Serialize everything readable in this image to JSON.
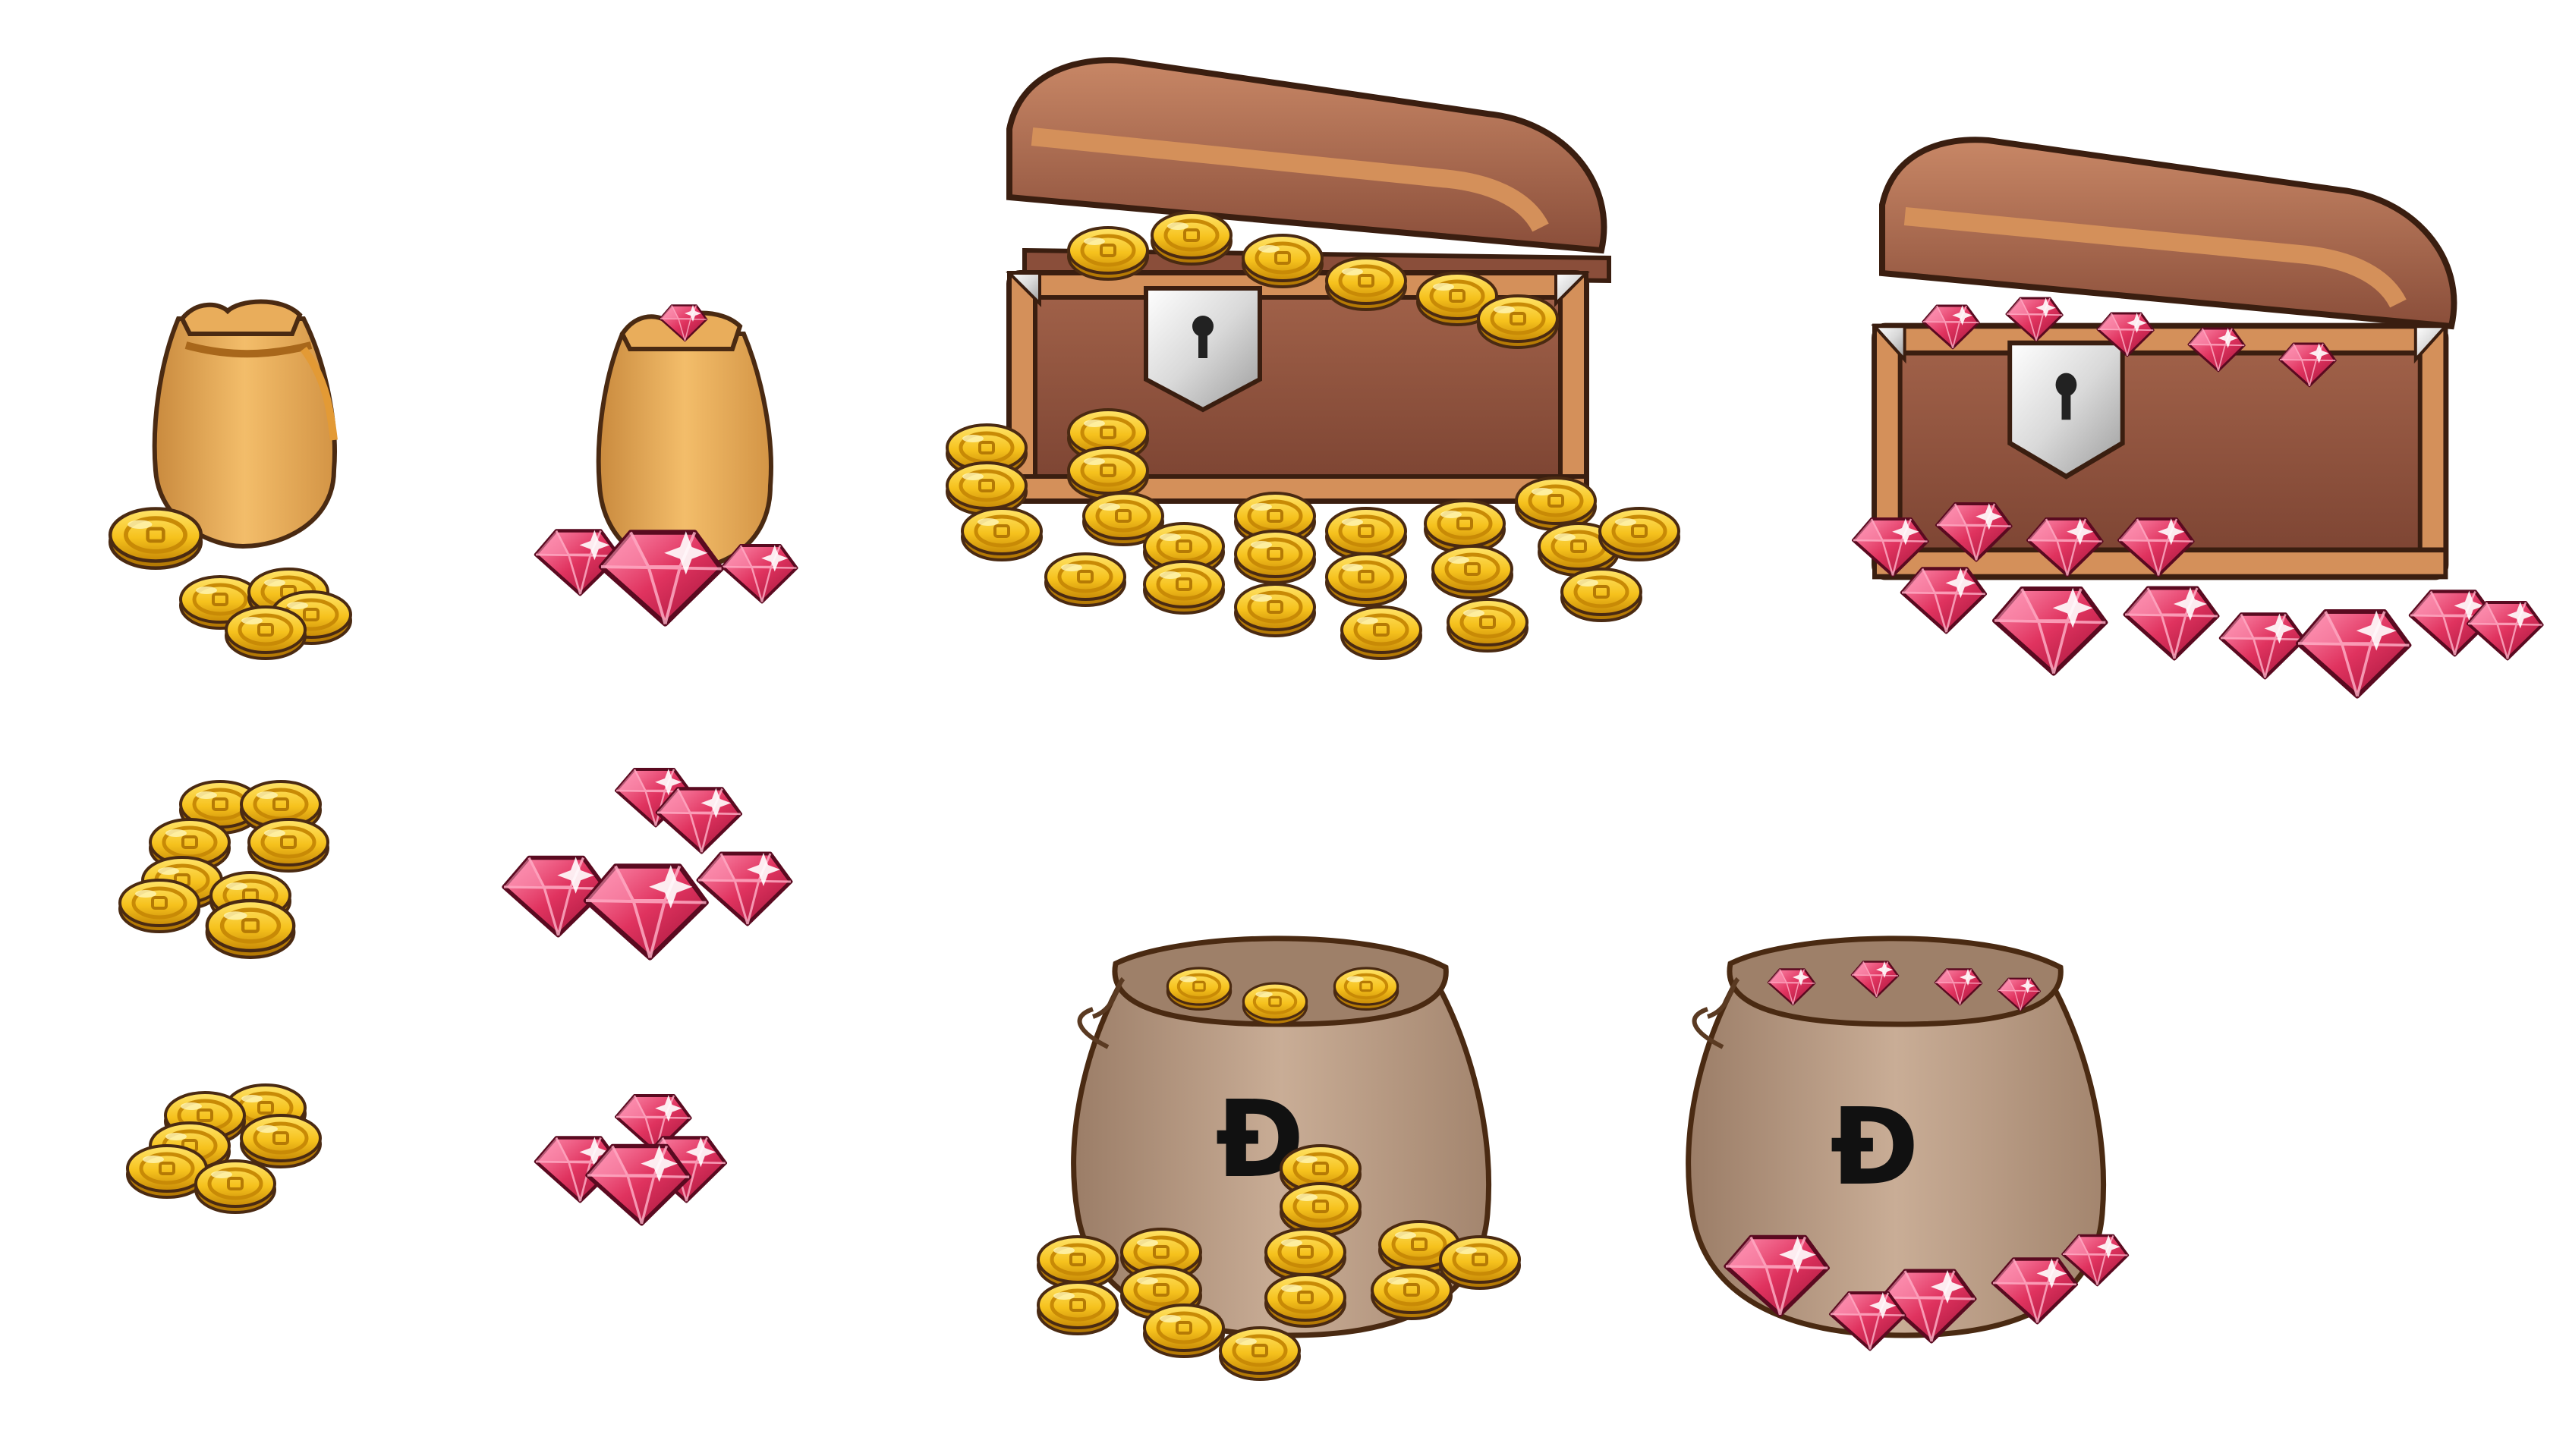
{
  "sheet": {
    "background": "#ffffff",
    "palette": {
      "gold": "#f6c21d",
      "gold_light": "#ffe46a",
      "gold_dark": "#c88a06",
      "ruby": "#e0335f",
      "ruby_light": "#ff8fb0",
      "ruby_dark": "#9e1238",
      "chest_wood": "#8a4e3a",
      "chest_trim": "#d4905a",
      "silver": "#d9d9d9",
      "small_bag": "#e9ad5b",
      "big_sack": "#b89a83",
      "outline": "#4a2a12"
    }
  },
  "items": [
    {
      "id": "coin-bag-small",
      "icon": "coin-bag-icon",
      "currency": "coins"
    },
    {
      "id": "gem-bag-small",
      "icon": "gem-bag-icon",
      "currency": "gems"
    },
    {
      "id": "coin-chest",
      "icon": "treasure-chest-coins-icon",
      "currency": "coins"
    },
    {
      "id": "gem-chest",
      "icon": "treasure-chest-gems-icon",
      "currency": "gems"
    },
    {
      "id": "coin-pile-medium",
      "icon": "coin-pile-icon",
      "currency": "coins"
    },
    {
      "id": "gem-pile-medium",
      "icon": "gem-pile-icon",
      "currency": "gems"
    },
    {
      "id": "coin-pile-small",
      "icon": "coin-stack-icon",
      "currency": "coins"
    },
    {
      "id": "gem-pile-small",
      "icon": "gem-cluster-icon",
      "currency": "gems"
    },
    {
      "id": "coin-sack-large",
      "icon": "coin-sack-icon",
      "currency": "coins"
    },
    {
      "id": "gem-sack-large",
      "icon": "gem-sack-icon",
      "currency": "gems"
    }
  ],
  "sack_symbol": "Đ"
}
